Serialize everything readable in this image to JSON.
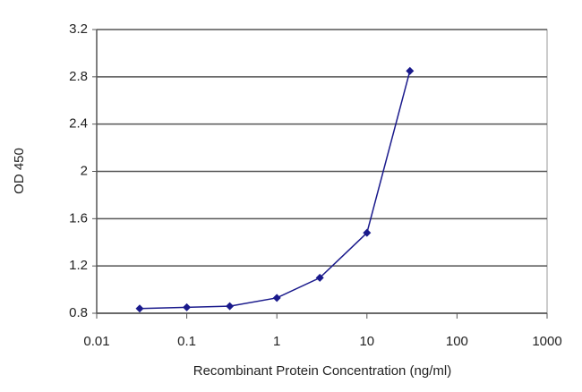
{
  "chart_data": {
    "type": "line",
    "x_label": "Recombinant Protein Concentration (ng/ml)",
    "y_label": "OD 450",
    "x": [
      0.03,
      0.1,
      0.3,
      1,
      3,
      10,
      30
    ],
    "series": [
      {
        "color": "#1a1a8c",
        "values": [
          0.84,
          0.85,
          0.86,
          0.93,
          1.1,
          1.48,
          2.85
        ]
      }
    ],
    "xlim": [
      0.01,
      1000
    ],
    "xticks": [
      0.01,
      0.1,
      1,
      10,
      100,
      1000
    ],
    "xscale": "log",
    "ylim": [
      0.8,
      3.2
    ],
    "yticks": [
      0.8,
      1.2,
      1.6,
      2,
      2.4,
      2.8,
      3.2
    ],
    "grid": true
  }
}
